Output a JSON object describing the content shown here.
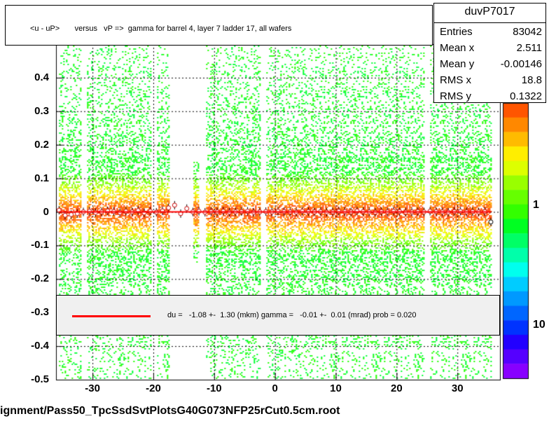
{
  "title": "<u - uP>       versus   vP =>  gamma for barrel 4, layer 7 ladder 17, all wafers",
  "footer": "ignment/Pass50_TpcSsdSvtPlotsG40G073NFP25rCut0.5cm.root",
  "stats": {
    "name": "duvP7017",
    "rows": [
      {
        "key": "Entries",
        "value": "83042"
      },
      {
        "key": "Mean x",
        "value": "2.511"
      },
      {
        "key": "Mean y",
        "value": "-0.00146"
      },
      {
        "key": "RMS x",
        "value": "18.8"
      },
      {
        "key": "RMS y",
        "value": "0.1322"
      }
    ]
  },
  "legend": {
    "text": "du =   -1.08 +-  1.30 (mkm) gamma =   -0.01 +-  0.01 (mrad) prob = 0.020",
    "line_color": "#ff0000"
  },
  "colors": {
    "fit_line": "#ff0000",
    "grid": "#000000"
  },
  "chart_data": {
    "type": "heatmap",
    "title": "<u - uP>       versus   vP =>  gamma for barrel 4, layer 7 ladder 17, all wafers",
    "xlabel": "",
    "ylabel": "",
    "xlim": [
      -36,
      37
    ],
    "ylim": [
      -0.5,
      0.5
    ],
    "x_ticks": [
      -30,
      -20,
      -10,
      0,
      10,
      20,
      30
    ],
    "x_tick_labels": [
      "-30",
      "-20",
      "-10",
      "0",
      "10",
      "20",
      "30"
    ],
    "y_ticks": [
      -0.5,
      -0.4,
      -0.3,
      -0.2,
      -0.1,
      0,
      0.1,
      0.2,
      0.3,
      0.4
    ],
    "y_tick_labels": [
      "-0.5",
      "-0.4",
      "-0.3",
      "-0.2",
      "-0.1",
      "0",
      "0.1",
      "0.2",
      "0.3",
      "0.4"
    ],
    "z_scale": "log",
    "z_tick_labels": [
      "1",
      "10"
    ],
    "grid": true,
    "empty_x_bands": [
      [
        -32,
        -31
      ],
      [
        -20.5,
        -19.5
      ],
      [
        -17.5,
        -13.5
      ],
      [
        -12.5,
        -11.5
      ],
      [
        -2.5,
        -1.5
      ],
      [
        24.5,
        25.5
      ]
    ],
    "profile": {
      "name": "<u - uP> profile",
      "x": [
        -35.5,
        -34.5,
        -33.5,
        -32.5,
        -31.5,
        -30.5,
        -29.5,
        -28.5,
        -27.5,
        -26.5,
        -25.5,
        -24.5,
        -23.5,
        -22.5,
        -21.5,
        -20.5,
        -19.5,
        -18.5,
        -17.5,
        -16.5,
        -15.5,
        -14.5,
        -13.5,
        -12.5,
        -11.5,
        -10.5,
        -9.5,
        -8.5,
        -7.5,
        -6.5,
        -5.5,
        -4.5,
        -3.5,
        -2.5,
        -1.5,
        -0.5,
        0.5,
        1.5,
        2.5,
        3.5,
        4.5,
        5.5,
        6.5,
        7.5,
        8.5,
        9.5,
        10.5,
        11.5,
        12.5,
        13.5,
        14.5,
        15.5,
        16.5,
        17.5,
        18.5,
        19.5,
        20.5,
        21.5,
        22.5,
        23.5,
        24.5,
        25.5,
        26.5,
        27.5,
        28.5,
        29.5,
        30.5,
        31.5,
        32.5,
        33.5,
        34.5,
        35.5
      ],
      "y": [
        0.005,
        -0.01,
        -0.008,
        -0.005,
        0.0,
        0.002,
        -0.002,
        0.0,
        0.003,
        0.001,
        -0.002,
        0.002,
        0.0,
        0.004,
        -0.003,
        0.002,
        -0.001,
        0.003,
        0.012,
        0.02,
        -0.005,
        0.01,
        0.0,
        0.002,
        -0.001,
        0.001,
        0.0,
        0.002,
        -0.001,
        0.0,
        0.001,
        0.002,
        -0.001,
        0.0,
        0.001,
        0.0,
        0.002,
        0.001,
        0.0,
        -0.001,
        0.002,
        0.001,
        0.0,
        0.001,
        -0.001,
        0.0,
        0.002,
        0.001,
        0.0,
        0.003,
        0.001,
        0.0,
        -0.001,
        0.001,
        0.0,
        0.002,
        0.001,
        -0.001,
        0.0,
        0.001,
        0.0,
        0.002,
        0.001,
        0.0,
        -0.001,
        0.001,
        0.002,
        0.0,
        0.001,
        0.0,
        0.001,
        -0.03
      ]
    },
    "fit": {
      "type": "line",
      "du_mkm": -1.08,
      "du_err_mkm": 1.3,
      "gamma_mrad": -0.01,
      "gamma_err_mrad": 0.01,
      "prob": 0.02
    }
  }
}
